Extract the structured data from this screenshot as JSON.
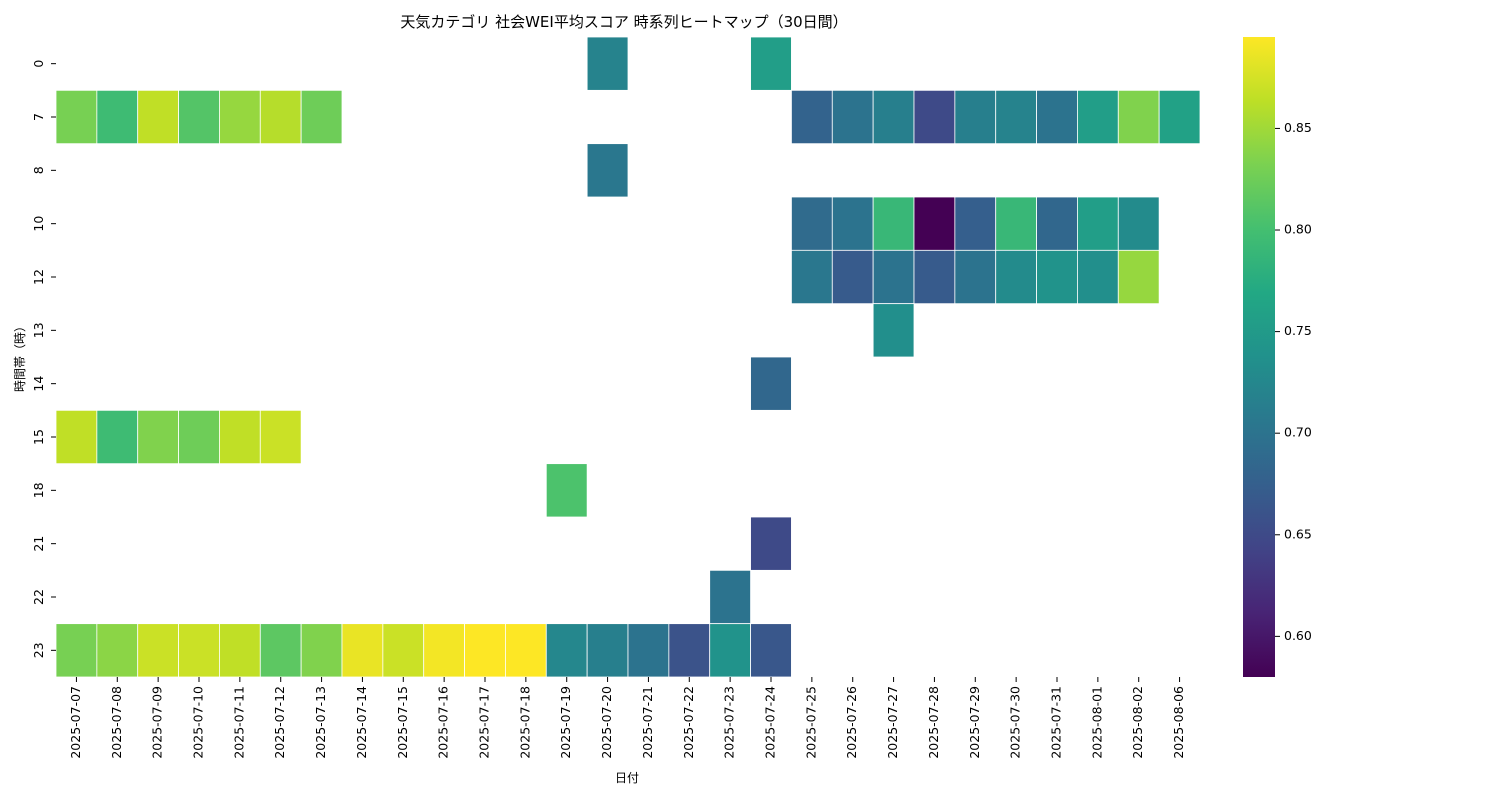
{
  "chart_data": {
    "type": "heatmap",
    "title": "天気カテゴリ 社会WEI平均スコア 時系列ヒートマップ（30日間）",
    "xlabel": "日付",
    "ylabel": "時間帯（時）",
    "x": [
      "2025-07-07",
      "2025-07-08",
      "2025-07-09",
      "2025-07-10",
      "2025-07-11",
      "2025-07-12",
      "2025-07-13",
      "2025-07-14",
      "2025-07-15",
      "2025-07-16",
      "2025-07-17",
      "2025-07-18",
      "2025-07-19",
      "2025-07-20",
      "2025-07-21",
      "2025-07-22",
      "2025-07-23",
      "2025-07-24",
      "2025-07-25",
      "2025-07-26",
      "2025-07-27",
      "2025-07-28",
      "2025-07-29",
      "2025-07-30",
      "2025-07-31",
      "2025-08-01",
      "2025-08-02",
      "2025-08-06"
    ],
    "y": [
      "0",
      "7",
      "8",
      "10",
      "12",
      "13",
      "14",
      "15",
      "18",
      "21",
      "22",
      "23"
    ],
    "values": [
      [
        null,
        null,
        null,
        null,
        null,
        null,
        null,
        null,
        null,
        null,
        null,
        null,
        null,
        0.72,
        null,
        null,
        null,
        0.755,
        null,
        null,
        null,
        null,
        null,
        null,
        null,
        null,
        null,
        null
      ],
      [
        0.83,
        0.795,
        0.865,
        0.81,
        0.845,
        0.86,
        0.825,
        null,
        null,
        null,
        null,
        null,
        null,
        null,
        null,
        null,
        null,
        null,
        0.68,
        0.7,
        0.715,
        0.65,
        0.715,
        0.72,
        0.7,
        0.755,
        0.835,
        0.76
      ],
      [
        null,
        null,
        null,
        null,
        null,
        null,
        null,
        null,
        null,
        null,
        null,
        null,
        null,
        0.705,
        null,
        null,
        null,
        null,
        null,
        null,
        null,
        null,
        null,
        null,
        null,
        null,
        null,
        null
      ],
      [
        null,
        null,
        null,
        null,
        null,
        null,
        null,
        null,
        null,
        null,
        null,
        null,
        null,
        null,
        null,
        null,
        null,
        null,
        0.69,
        0.7,
        0.79,
        0.58,
        0.675,
        0.79,
        0.685,
        0.755,
        0.73,
        null
      ],
      [
        null,
        null,
        null,
        null,
        null,
        null,
        null,
        null,
        null,
        null,
        null,
        null,
        null,
        null,
        null,
        null,
        null,
        null,
        0.705,
        0.67,
        0.7,
        0.67,
        0.7,
        0.73,
        0.74,
        0.735,
        0.845,
        null
      ],
      [
        null,
        null,
        null,
        null,
        null,
        null,
        null,
        null,
        null,
        null,
        null,
        null,
        null,
        null,
        null,
        null,
        null,
        null,
        null,
        null,
        0.735,
        null,
        null,
        null,
        null,
        null,
        null,
        null
      ],
      [
        null,
        null,
        null,
        null,
        null,
        null,
        null,
        null,
        null,
        null,
        null,
        null,
        null,
        null,
        null,
        null,
        null,
        0.685,
        null,
        null,
        null,
        null,
        null,
        null,
        null,
        null,
        null,
        null
      ],
      [
        0.865,
        0.795,
        0.835,
        0.825,
        0.865,
        0.87,
        null,
        null,
        null,
        null,
        null,
        null,
        null,
        null,
        null,
        null,
        null,
        null,
        null,
        null,
        null,
        null,
        null,
        null,
        null,
        null,
        null,
        null
      ],
      [
        null,
        null,
        null,
        null,
        null,
        null,
        null,
        null,
        null,
        null,
        null,
        null,
        0.805,
        null,
        null,
        null,
        null,
        null,
        null,
        null,
        null,
        null,
        null,
        null,
        null,
        null,
        null,
        null
      ],
      [
        null,
        null,
        null,
        null,
        null,
        null,
        null,
        null,
        null,
        null,
        null,
        null,
        null,
        null,
        null,
        null,
        null,
        0.65,
        null,
        null,
        null,
        null,
        null,
        null,
        null,
        null,
        null,
        null
      ],
      [
        null,
        null,
        null,
        null,
        null,
        null,
        null,
        null,
        null,
        null,
        null,
        null,
        null,
        null,
        null,
        null,
        0.7,
        null,
        null,
        null,
        null,
        null,
        null,
        null,
        null,
        null,
        null,
        null
      ],
      [
        0.83,
        0.84,
        0.87,
        0.87,
        0.865,
        0.815,
        0.835,
        0.885,
        0.87,
        0.89,
        0.895,
        0.895,
        0.725,
        0.715,
        0.7,
        0.66,
        0.74,
        0.665,
        null,
        null,
        null,
        null,
        null,
        null,
        null,
        null,
        null,
        null
      ]
    ],
    "colorscale": "viridis",
    "vmin": 0.58,
    "vmax": 0.895,
    "colorbar_ticks": [
      "0.60",
      "0.65",
      "0.70",
      "0.75",
      "0.80",
      "0.85"
    ],
    "grid": false,
    "cell_border_color": "#ffffff"
  }
}
